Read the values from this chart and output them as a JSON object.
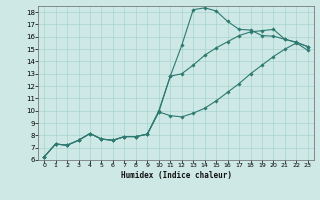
{
  "xlabel": "Humidex (Indice chaleur)",
  "xlim": [
    -0.5,
    23.5
  ],
  "ylim": [
    6,
    18.5
  ],
  "xticks": [
    0,
    1,
    2,
    3,
    4,
    5,
    6,
    7,
    8,
    9,
    10,
    11,
    12,
    13,
    14,
    15,
    16,
    17,
    18,
    19,
    20,
    21,
    22,
    23
  ],
  "yticks": [
    6,
    7,
    8,
    9,
    10,
    11,
    12,
    13,
    14,
    15,
    16,
    17,
    18
  ],
  "background_color": "#cde8e5",
  "grid_color": "#a8d4d0",
  "line_color": "#2e7a70",
  "curves": [
    {
      "x": [
        0,
        1,
        2,
        3,
        4,
        5,
        6,
        7,
        8,
        9,
        10,
        11,
        12,
        13,
        14,
        15,
        16,
        17,
        18,
        19,
        20,
        21,
        22,
        23
      ],
      "y": [
        6.25,
        7.3,
        7.2,
        7.6,
        8.15,
        7.7,
        7.6,
        7.9,
        7.9,
        8.1,
        10.0,
        12.8,
        15.3,
        18.2,
        18.35,
        18.1,
        17.25,
        16.6,
        16.55,
        16.1,
        16.05,
        15.8,
        15.55,
        15.2
      ]
    },
    {
      "x": [
        0,
        1,
        2,
        3,
        4,
        5,
        6,
        7,
        8,
        9,
        10,
        11,
        12,
        13,
        14,
        15,
        16,
        17,
        18,
        19,
        20,
        21,
        22,
        23
      ],
      "y": [
        6.25,
        7.3,
        7.2,
        7.6,
        8.15,
        7.7,
        7.6,
        7.9,
        7.9,
        8.1,
        9.9,
        12.8,
        13.0,
        13.7,
        14.5,
        15.1,
        15.6,
        16.1,
        16.4,
        16.5,
        16.6,
        15.8,
        15.55,
        15.2
      ]
    },
    {
      "x": [
        0,
        1,
        2,
        3,
        4,
        5,
        6,
        7,
        8,
        9,
        10,
        11,
        12,
        13,
        14,
        15,
        16,
        17,
        18,
        19,
        20,
        21,
        22,
        23
      ],
      "y": [
        6.25,
        7.3,
        7.2,
        7.6,
        8.15,
        7.7,
        7.6,
        7.9,
        7.9,
        8.1,
        9.9,
        9.6,
        9.5,
        9.8,
        10.2,
        10.8,
        11.5,
        12.2,
        13.0,
        13.7,
        14.4,
        15.0,
        15.5,
        14.9
      ]
    }
  ]
}
